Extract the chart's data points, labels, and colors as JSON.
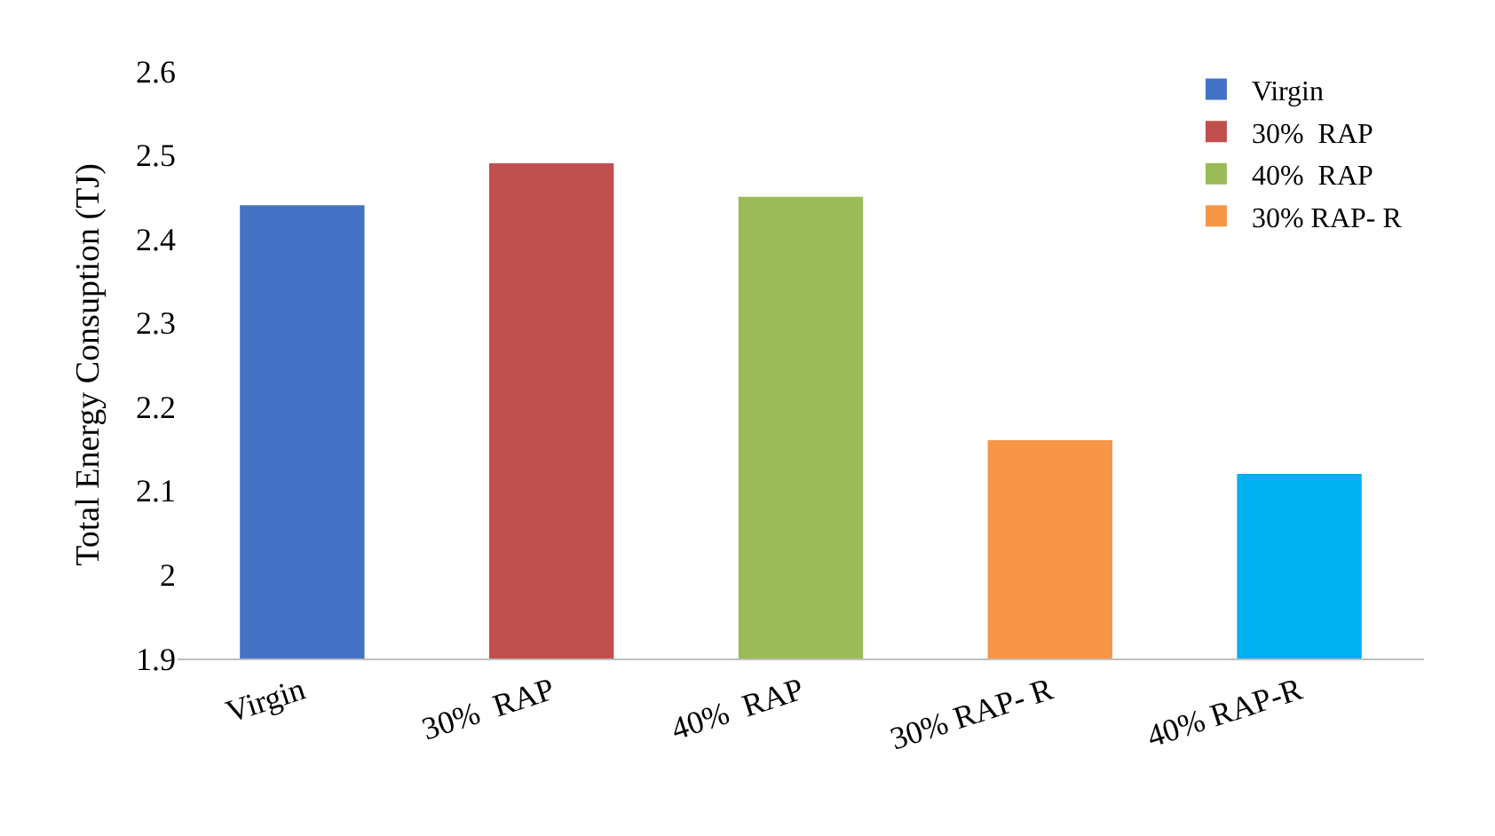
{
  "chart_data": {
    "type": "bar",
    "ylabel": "Total Energy Consuption (TJ)",
    "categories": [
      "Virgin",
      "30%  RAP",
      "40%  RAP",
      "30% RAP- R",
      "40% RAP-R"
    ],
    "series": [
      {
        "name": "Virgin",
        "color": "#4472c4",
        "values": [
          2.44,
          null,
          null,
          null,
          null
        ]
      },
      {
        "name": "30%  RAP",
        "color": "#c0504d",
        "values": [
          null,
          2.49,
          null,
          null,
          null
        ]
      },
      {
        "name": "40%  RAP",
        "color": "#9bbb59",
        "values": [
          null,
          null,
          2.45,
          null,
          null
        ]
      },
      {
        "name": "30% RAP- R",
        "color": "#f79646",
        "values": [
          null,
          null,
          null,
          2.16,
          null
        ]
      },
      {
        "color": "#00b0f0",
        "values": [
          null,
          null,
          null,
          null,
          2.12
        ]
      }
    ],
    "ylim": [
      1.9,
      2.6
    ],
    "yticks": [
      1.9,
      2,
      2.1,
      2.2,
      2.3,
      2.4,
      2.5,
      2.6
    ],
    "legend": "top right"
  }
}
